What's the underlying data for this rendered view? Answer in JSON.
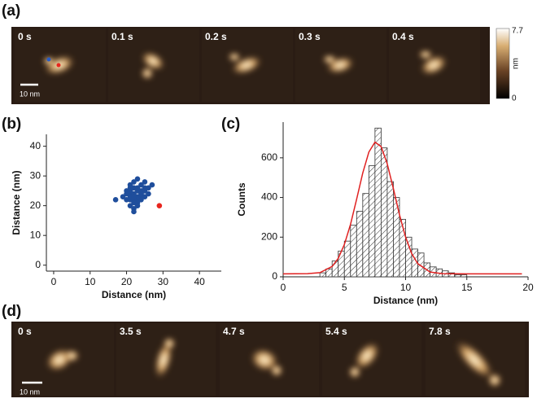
{
  "panels": {
    "a": {
      "label": "(a)",
      "frames": [
        "0 s",
        "0.1 s",
        "0.2 s",
        "0.3 s",
        "0.4 s"
      ],
      "scale_bar": "10 nm",
      "colorbar": {
        "ticks": [
          0,
          7.7
        ],
        "unit": "nm"
      }
    },
    "d": {
      "label": "(d)",
      "frames": [
        "0 s",
        "3.5 s",
        "4.7 s",
        "5.4 s",
        "7.8 s"
      ],
      "scale_bar": "10 nm"
    }
  },
  "chart_data": [
    {
      "type": "scatter",
      "panel_label": "(b)",
      "xlabel": "Distance (nm)",
      "ylabel": "Distance (nm)",
      "xlim": [
        -2,
        46
      ],
      "ylim": [
        -2,
        44
      ],
      "xticks": [
        0,
        10,
        20,
        30,
        40
      ],
      "yticks": [
        0,
        10,
        20,
        30,
        40
      ],
      "series": [
        {
          "color": "#1f4e9c",
          "x": [
            20,
            21,
            22,
            23,
            24,
            25,
            26,
            21,
            22,
            23,
            24,
            25,
            20,
            21,
            22,
            23,
            24,
            25,
            26,
            19,
            20,
            21,
            22,
            23,
            24,
            21,
            22,
            23,
            22,
            23,
            24,
            21,
            22,
            25,
            17,
            27,
            21,
            22,
            24,
            23
          ],
          "values": [
            22,
            22,
            22,
            22,
            23,
            23,
            24,
            24,
            24,
            25,
            25,
            25,
            25,
            26,
            26,
            26,
            27,
            26,
            26,
            23,
            24,
            23,
            21,
            21,
            22,
            20,
            19,
            20,
            18,
            23,
            24,
            27,
            28,
            28,
            22,
            27,
            25,
            23,
            24,
            29
          ]
        },
        {
          "color": "#e8261e",
          "x": [
            29
          ],
          "values": [
            20
          ]
        }
      ]
    },
    {
      "type": "histogram",
      "panel_label": "(c)",
      "xlabel": "Distance (nm)",
      "ylabel": "Counts",
      "xlim": [
        0,
        20
      ],
      "ylim": [
        0,
        780
      ],
      "xticks": [
        0,
        5,
        10,
        15,
        20
      ],
      "yticks": [
        0,
        200,
        400,
        600
      ],
      "bins": [
        3,
        3.5,
        4,
        4.5,
        5,
        5.5,
        6,
        6.5,
        7,
        7.5,
        8,
        8.5,
        9,
        9.5,
        10,
        10.5,
        11,
        11.5,
        12,
        12.5,
        13,
        13.5,
        14,
        14.5,
        15
      ],
      "values": [
        20,
        40,
        80,
        130,
        180,
        260,
        330,
        420,
        560,
        750,
        650,
        480,
        400,
        290,
        200,
        140,
        120,
        70,
        50,
        40,
        30,
        20,
        10,
        10
      ],
      "color": "#333333",
      "fit": {
        "color": "#e02020",
        "x": [
          0,
          2,
          3,
          4,
          4.5,
          5,
          5.5,
          6,
          6.5,
          7,
          7.5,
          8,
          8.5,
          9,
          9.5,
          10,
          10.5,
          11,
          12,
          13,
          15,
          19.5
        ],
        "values": [
          15,
          16,
          21,
          52,
          93,
          163,
          264,
          391,
          523,
          629,
          679,
          657,
          570,
          445,
          313,
          200,
          117,
          66,
          24,
          16,
          15,
          15
        ]
      }
    }
  ]
}
